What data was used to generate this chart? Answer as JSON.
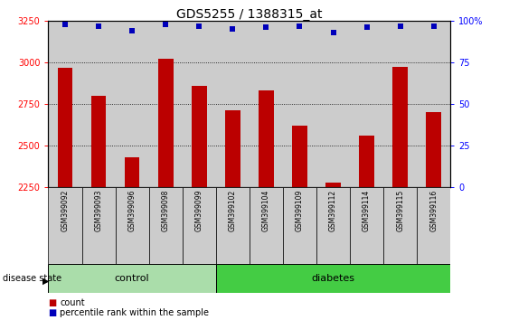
{
  "title": "GDS5255 / 1388315_at",
  "samples": [
    "GSM399092",
    "GSM399093",
    "GSM399096",
    "GSM399098",
    "GSM399099",
    "GSM399102",
    "GSM399104",
    "GSM399109",
    "GSM399112",
    "GSM399114",
    "GSM399115",
    "GSM399116"
  ],
  "counts": [
    2970,
    2800,
    2430,
    3020,
    2860,
    2710,
    2830,
    2620,
    2280,
    2560,
    2975,
    2700
  ],
  "percentile_ranks": [
    98,
    97,
    94,
    98,
    97,
    95,
    96,
    97,
    93,
    96,
    97,
    97
  ],
  "groups": [
    "control",
    "control",
    "control",
    "control",
    "control",
    "diabetes",
    "diabetes",
    "diabetes",
    "diabetes",
    "diabetes",
    "diabetes",
    "diabetes"
  ],
  "control_count": 5,
  "diabetes_count": 7,
  "ylim_left": [
    2250,
    3250
  ],
  "ylim_right": [
    0,
    100
  ],
  "yticks_left": [
    2250,
    2500,
    2750,
    3000,
    3250
  ],
  "yticks_right": [
    0,
    25,
    50,
    75,
    100
  ],
  "bar_color": "#bb0000",
  "dot_color": "#0000bb",
  "control_color": "#aaddaa",
  "diabetes_color": "#44cc44",
  "bg_color": "#cccccc",
  "label_count": "count",
  "label_percentile": "percentile rank within the sample",
  "label_disease": "disease state",
  "label_control": "control",
  "label_diabetes": "diabetes"
}
